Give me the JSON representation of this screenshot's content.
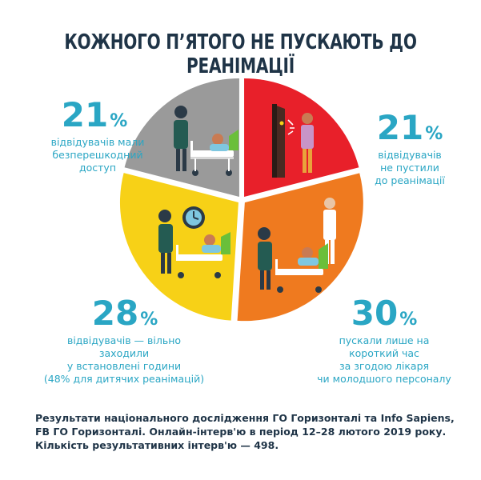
{
  "title": "КОЖНОГО П’ЯТОГО НЕ ПУСКАЮТЬ ДО РЕАНІМАЦІЇ",
  "chart_data": {
    "type": "pie",
    "slices": [
      {
        "label": "відвідувачів не пустили до реанімації",
        "value": 21,
        "color": "#e8202a"
      },
      {
        "label": "пускали лише на короткий час за згодою лікаря чи молодшого персоналу",
        "value": 30,
        "color": "#ef7a1f"
      },
      {
        "label": "відвідувачів — вільно заходили у встановлені години (48% для дитячих реанімацій)",
        "value": 28,
        "color": "#f7d117"
      },
      {
        "label": "відвідувачів мали безперешкодний доступ",
        "value": 21,
        "color": "#9a9a9a"
      }
    ]
  },
  "labels": {
    "gray": {
      "value": "21",
      "sign": "%",
      "caption": "відвідувачів мали\nбезперешкодний\nдоступ"
    },
    "red": {
      "value": "21",
      "sign": "%",
      "caption": "відвідувачів\nне пустили\nдо реанімації"
    },
    "yellow": {
      "value": "28",
      "sign": "%",
      "caption": "відвідувачів — вільно\nзаходили\nу встановлені години\n(48% для дитячих реанімацій)"
    },
    "orange": {
      "value": "30",
      "sign": "%",
      "caption": "пускали лише на\nкороткий час\nза згодою лікаря\nчи молодшого персоналу"
    }
  },
  "footer": "Результати національного дослідження ГО Горизонталі та Info Sapiens,\nFB ГО Горизонталі. Онлайн-інтерв'ю в період 12–28 лютого 2019 року.\nКількість результативних інтерв'ю — 498.",
  "colors": {
    "accent": "#2aa6c4",
    "dark": "#1f3447"
  }
}
